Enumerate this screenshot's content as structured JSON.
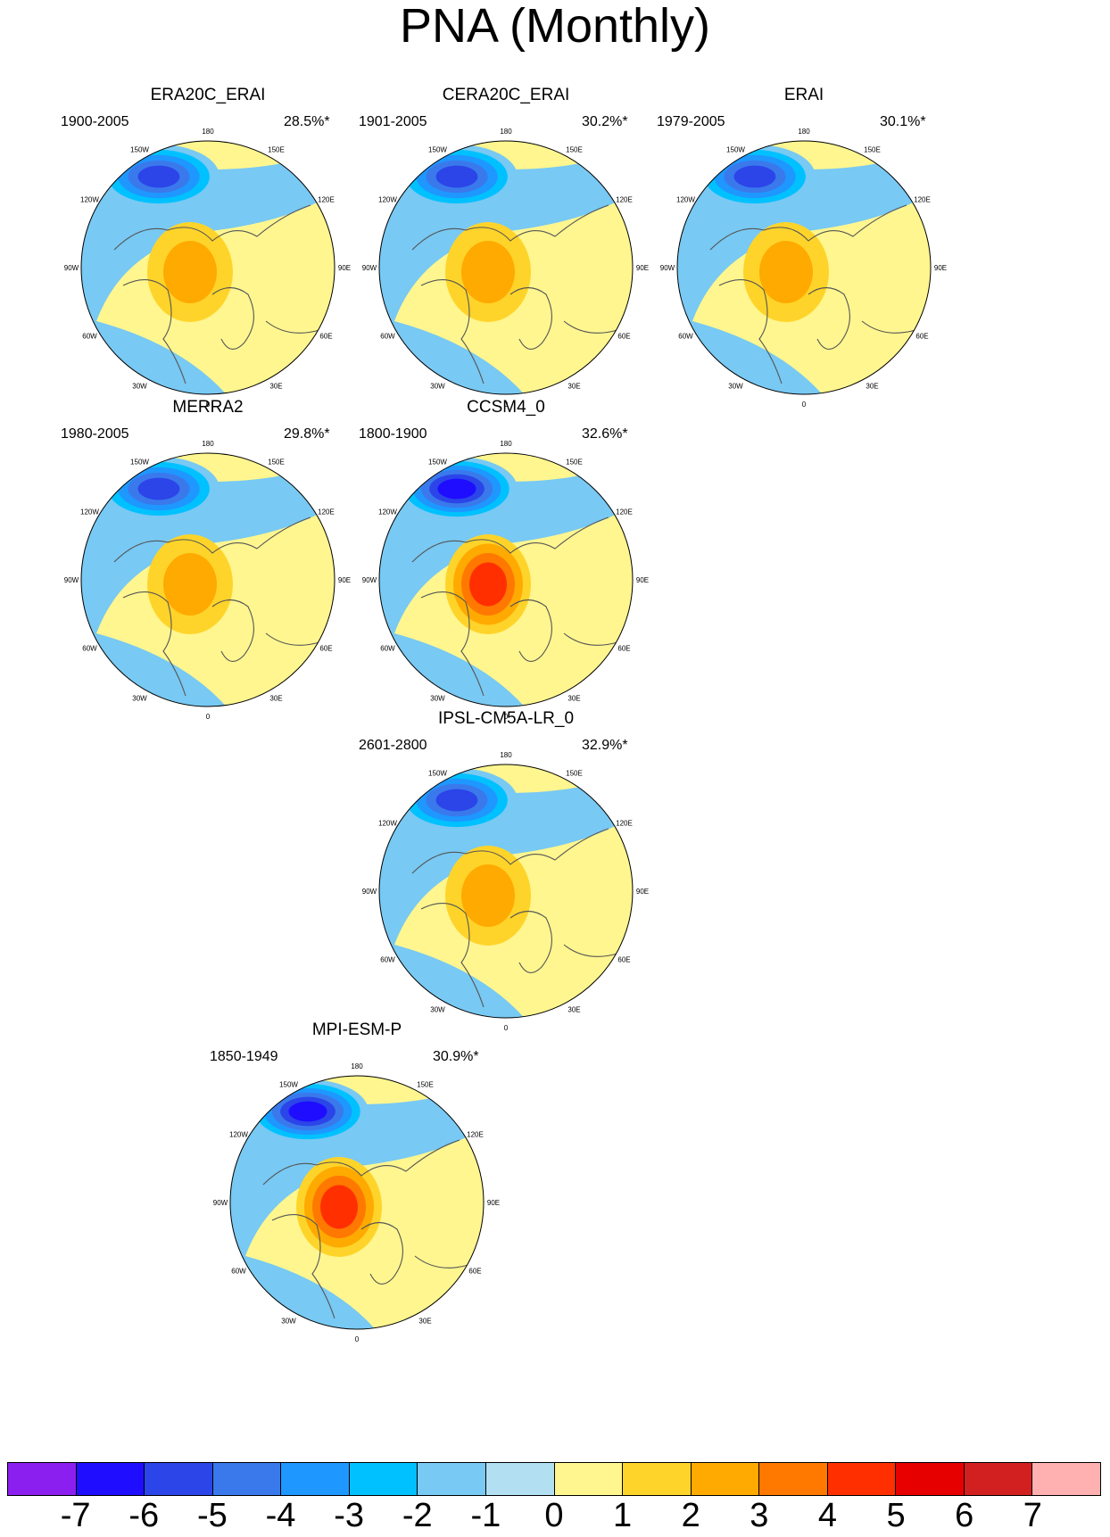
{
  "figure": {
    "title": "PNA (Monthly)"
  },
  "longitude_labels": [
    "180",
    "150E",
    "120E",
    "90E",
    "60E",
    "30E",
    "0",
    "30W",
    "60W",
    "90W",
    "120W",
    "150W"
  ],
  "panels": [
    {
      "name": "ERA20C_ERAI",
      "period": "1900-2005",
      "variance": "28.5%*",
      "low_center": -5,
      "high_center": 2
    },
    {
      "name": "CERA20C_ERAI",
      "period": "1901-2005",
      "variance": "30.2%*",
      "low_center": -5,
      "high_center": 2
    },
    {
      "name": "ERAI",
      "period": "1979-2005",
      "variance": "30.1%*",
      "low_center": -5,
      "high_center": 2
    },
    {
      "name": "MERRA2",
      "period": "1980-2005",
      "variance": "29.8%*",
      "low_center": -5,
      "high_center": 2
    },
    {
      "name": "CCSM4_0",
      "period": "1800-1900",
      "variance": "32.6%*",
      "low_center": -6,
      "high_center": 4
    },
    {
      "name": "IPSL-CM5A-LR_0",
      "period": "2601-2800",
      "variance": "32.9%*",
      "low_center": -5,
      "high_center": 2
    },
    {
      "name": "MPI-ESM-P",
      "period": "1850-1949",
      "variance": "30.9%*",
      "low_center": -6,
      "high_center": 4
    }
  ],
  "colorbar": {
    "labels": [
      "-7",
      "-6",
      "-5",
      "-4",
      "-3",
      "-2",
      "-1",
      "0",
      "1",
      "2",
      "3",
      "4",
      "5",
      "6",
      "7"
    ],
    "colors": [
      "#8a1ff0",
      "#1e0dff",
      "#2b45e8",
      "#3a79ec",
      "#1e97ff",
      "#00c1ff",
      "#78c9f3",
      "#b3dff3",
      "#fff68f",
      "#ffd42a",
      "#ffaa00",
      "#ff7800",
      "#ff2f00",
      "#e60000",
      "#d21f1f",
      "#ffb0b0"
    ]
  }
}
